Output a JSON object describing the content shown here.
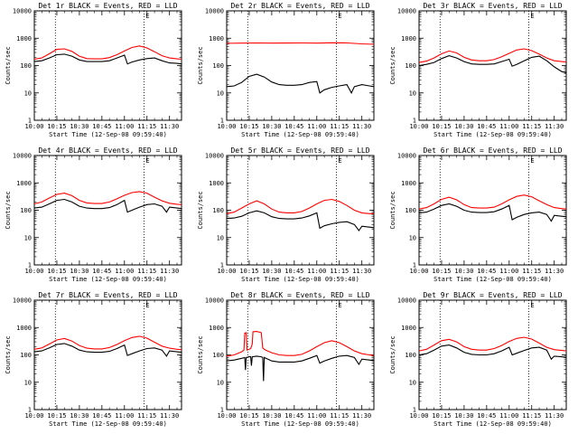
{
  "figure": {
    "xlabel": "Start Time (12-Sep-08 09:59:40)",
    "ylabel": "Counts/sec",
    "x_tick_labels": [
      "10:00",
      "10:15",
      "10:30",
      "10:45",
      "11:00",
      "11:15",
      "11:30"
    ],
    "y_tick_labels": [
      "1",
      "10",
      "100",
      "1000",
      "10000"
    ],
    "marker_label": "E",
    "series_colors": {
      "events": "#000000",
      "lld": "#ff0000"
    }
  },
  "chart_data": [
    {
      "type": "line",
      "title": "Det 1r BLACK = Events, RED = LLD",
      "xlabel": "Start Time (12-Sep-08 09:59:40)",
      "ylabel": "Counts/sec",
      "x_unit": "minutes after 10:00",
      "xlim": [
        0,
        98
      ],
      "ylim": [
        1,
        10000
      ],
      "log_y": true,
      "vlines": [
        14,
        73
      ],
      "series": [
        {
          "name": "Events",
          "color": "#000000",
          "x": [
            0,
            5,
            10,
            15,
            20,
            25,
            30,
            35,
            40,
            45,
            50,
            55,
            60,
            62,
            65,
            70,
            75,
            80,
            85,
            90,
            95,
            98
          ],
          "y": [
            140,
            150,
            190,
            250,
            260,
            220,
            160,
            140,
            140,
            140,
            150,
            190,
            240,
            115,
            135,
            160,
            180,
            190,
            150,
            125,
            120,
            115
          ]
        },
        {
          "name": "LLD",
          "color": "#ff0000",
          "x": [
            0,
            5,
            10,
            15,
            20,
            25,
            30,
            35,
            40,
            45,
            50,
            55,
            60,
            65,
            70,
            75,
            80,
            85,
            90,
            95,
            98
          ],
          "y": [
            170,
            190,
            270,
            390,
            410,
            330,
            220,
            180,
            175,
            175,
            195,
            250,
            340,
            460,
            520,
            440,
            320,
            230,
            190,
            175,
            170
          ]
        }
      ]
    },
    {
      "type": "line",
      "title": "Det 2r BLACK = Events, RED = LLD",
      "xlabel": "Start Time (12-Sep-08 09:59:40)",
      "ylabel": "Counts/sec",
      "x_unit": "minutes after 10:00",
      "xlim": [
        0,
        98
      ],
      "ylim": [
        1,
        10000
      ],
      "log_y": true,
      "vlines": [
        14,
        73
      ],
      "series": [
        {
          "name": "Events",
          "color": "#000000",
          "x": [
            0,
            5,
            10,
            15,
            20,
            25,
            30,
            35,
            40,
            45,
            50,
            55,
            60,
            62,
            65,
            70,
            75,
            80,
            83,
            85,
            90,
            95,
            98
          ],
          "y": [
            17,
            18,
            24,
            40,
            48,
            38,
            25,
            20,
            19,
            19,
            20,
            24,
            26,
            10,
            13,
            16,
            18,
            20,
            10,
            17,
            20,
            18,
            17
          ]
        },
        {
          "name": "LLD",
          "color": "#ff0000",
          "x": [
            0,
            10,
            20,
            30,
            40,
            50,
            60,
            70,
            80,
            90,
            98
          ],
          "y": [
            650,
            660,
            670,
            660,
            665,
            670,
            660,
            680,
            670,
            620,
            600
          ]
        }
      ]
    },
    {
      "type": "line",
      "title": "Det 3r BLACK = Events, RED = LLD",
      "xlabel": "Start Time (12-Sep-08 09:59:40)",
      "ylabel": "Counts/sec",
      "x_unit": "minutes after 10:00",
      "xlim": [
        0,
        98
      ],
      "ylim": [
        1,
        10000
      ],
      "log_y": true,
      "vlines": [
        14,
        73
      ],
      "series": [
        {
          "name": "Events",
          "color": "#000000",
          "x": [
            0,
            5,
            10,
            15,
            20,
            25,
            30,
            35,
            40,
            45,
            50,
            55,
            60,
            62,
            65,
            70,
            75,
            80,
            85,
            90,
            95,
            98
          ],
          "y": [
            100,
            110,
            130,
            180,
            230,
            190,
            140,
            115,
            110,
            110,
            115,
            140,
            170,
            95,
            110,
            150,
            200,
            220,
            150,
            90,
            60,
            55
          ]
        },
        {
          "name": "LLD",
          "color": "#ff0000",
          "x": [
            0,
            5,
            10,
            15,
            20,
            25,
            30,
            35,
            40,
            45,
            50,
            55,
            60,
            65,
            70,
            75,
            80,
            85,
            90,
            95,
            98
          ],
          "y": [
            130,
            145,
            190,
            270,
            340,
            290,
            200,
            160,
            150,
            150,
            165,
            210,
            280,
            370,
            410,
            350,
            260,
            190,
            150,
            140,
            135
          ]
        }
      ]
    },
    {
      "type": "line",
      "title": "Det 4r BLACK = Events, RED = LLD",
      "xlabel": "Start Time (12-Sep-08 09:59:40)",
      "ylabel": "Counts/sec",
      "x_unit": "minutes after 10:00",
      "xlim": [
        0,
        98
      ],
      "ylim": [
        1,
        10000
      ],
      "log_y": true,
      "vlines": [
        14,
        73
      ],
      "series": [
        {
          "name": "Events",
          "color": "#000000",
          "x": [
            0,
            5,
            10,
            15,
            20,
            25,
            30,
            35,
            40,
            45,
            50,
            55,
            60,
            62,
            65,
            70,
            75,
            80,
            85,
            88,
            90,
            95,
            98
          ],
          "y": [
            120,
            130,
            170,
            230,
            250,
            200,
            140,
            120,
            115,
            115,
            125,
            160,
            230,
            85,
            100,
            130,
            160,
            170,
            140,
            85,
            130,
            120,
            115
          ]
        },
        {
          "name": "LLD",
          "color": "#ff0000",
          "x": [
            0,
            5,
            10,
            15,
            20,
            25,
            30,
            35,
            40,
            45,
            50,
            55,
            60,
            65,
            70,
            75,
            80,
            85,
            90,
            95,
            98
          ],
          "y": [
            170,
            200,
            280,
            380,
            420,
            340,
            230,
            185,
            175,
            175,
            200,
            260,
            350,
            440,
            480,
            420,
            300,
            220,
            180,
            165,
            160
          ]
        }
      ]
    },
    {
      "type": "line",
      "title": "Det 5r BLACK = Events, RED = LLD",
      "xlabel": "Start Time (12-Sep-08 09:59:40)",
      "ylabel": "Counts/sec",
      "x_unit": "minutes after 10:00",
      "xlim": [
        0,
        98
      ],
      "ylim": [
        1,
        10000
      ],
      "log_y": true,
      "vlines": [
        14,
        73
      ],
      "series": [
        {
          "name": "Events",
          "color": "#000000",
          "x": [
            0,
            5,
            10,
            15,
            20,
            25,
            30,
            35,
            40,
            45,
            50,
            55,
            60,
            62,
            65,
            70,
            75,
            80,
            85,
            88,
            90,
            95,
            98
          ],
          "y": [
            50,
            52,
            60,
            80,
            95,
            80,
            58,
            50,
            48,
            48,
            52,
            62,
            80,
            22,
            27,
            32,
            36,
            38,
            30,
            18,
            26,
            24,
            23
          ]
        },
        {
          "name": "LLD",
          "color": "#ff0000",
          "x": [
            0,
            5,
            10,
            15,
            20,
            25,
            30,
            35,
            40,
            45,
            50,
            55,
            60,
            65,
            70,
            75,
            80,
            85,
            90,
            95,
            98
          ],
          "y": [
            75,
            85,
            120,
            170,
            220,
            170,
            110,
            85,
            80,
            80,
            90,
            120,
            170,
            230,
            250,
            210,
            150,
            100,
            80,
            75,
            75
          ]
        }
      ]
    },
    {
      "type": "line",
      "title": "Det 6r BLACK = Events, RED = LLD",
      "xlabel": "Start Time (12-Sep-08 09:59:40)",
      "ylabel": "Counts/sec",
      "x_unit": "minutes after 10:00",
      "xlim": [
        0,
        98
      ],
      "ylim": [
        1,
        10000
      ],
      "log_y": true,
      "vlines": [
        14,
        73
      ],
      "series": [
        {
          "name": "Events",
          "color": "#000000",
          "x": [
            0,
            5,
            10,
            15,
            20,
            25,
            30,
            35,
            40,
            45,
            50,
            55,
            60,
            62,
            65,
            70,
            75,
            80,
            85,
            88,
            90,
            95,
            98
          ],
          "y": [
            80,
            85,
            110,
            150,
            170,
            140,
            100,
            85,
            82,
            82,
            88,
            110,
            150,
            45,
            55,
            70,
            80,
            85,
            70,
            40,
            65,
            60,
            58
          ]
        },
        {
          "name": "LLD",
          "color": "#ff0000",
          "x": [
            0,
            5,
            10,
            15,
            20,
            25,
            30,
            35,
            40,
            45,
            50,
            55,
            60,
            65,
            70,
            75,
            80,
            85,
            90,
            95,
            98
          ],
          "y": [
            110,
            125,
            170,
            250,
            300,
            240,
            160,
            125,
            120,
            120,
            130,
            170,
            240,
            320,
            360,
            310,
            220,
            160,
            125,
            115,
            110
          ]
        }
      ]
    },
    {
      "type": "line",
      "title": "Det 7r BLACK = Events, RED = LLD",
      "xlabel": "Start Time (12-Sep-08 09:59:40)",
      "ylabel": "Counts/sec",
      "x_unit": "minutes after 10:00",
      "xlim": [
        0,
        98
      ],
      "ylim": [
        1,
        10000
      ],
      "log_y": true,
      "vlines": [
        14,
        73
      ],
      "series": [
        {
          "name": "Events",
          "color": "#000000",
          "x": [
            0,
            5,
            10,
            15,
            20,
            25,
            30,
            35,
            40,
            45,
            50,
            55,
            60,
            62,
            65,
            70,
            75,
            80,
            85,
            88,
            90,
            95,
            98
          ],
          "y": [
            130,
            140,
            180,
            240,
            260,
            210,
            150,
            130,
            125,
            125,
            135,
            170,
            230,
            95,
            110,
            140,
            170,
            180,
            150,
            90,
            140,
            130,
            125
          ]
        },
        {
          "name": "LLD",
          "color": "#ff0000",
          "x": [
            0,
            5,
            10,
            15,
            20,
            25,
            30,
            35,
            40,
            45,
            50,
            55,
            60,
            65,
            70,
            75,
            80,
            85,
            90,
            95,
            98
          ],
          "y": [
            160,
            180,
            250,
            350,
            400,
            320,
            220,
            175,
            165,
            165,
            185,
            240,
            330,
            430,
            480,
            410,
            290,
            210,
            175,
            160,
            155
          ]
        }
      ]
    },
    {
      "type": "line",
      "title": "Det 8r BLACK = Events, RED = LLD",
      "xlabel": "Start Time (12-Sep-08 09:59:40)",
      "ylabel": "Counts/sec",
      "x_unit": "minutes after 10:00",
      "xlim": [
        0,
        98
      ],
      "ylim": [
        1,
        10000
      ],
      "log_y": true,
      "vlines": [
        14,
        73
      ],
      "series": [
        {
          "name": "Events",
          "color": "#000000",
          "x": [
            0,
            5,
            10,
            12,
            12.5,
            13,
            15,
            16,
            16.5,
            17,
            20,
            23,
            24,
            24.5,
            25,
            30,
            35,
            40,
            45,
            50,
            55,
            60,
            62,
            65,
            70,
            75,
            80,
            85,
            88,
            90,
            95,
            98
          ],
          "y": [
            60,
            65,
            75,
            80,
            28,
            80,
            85,
            85,
            40,
            85,
            90,
            85,
            80,
            11,
            80,
            60,
            55,
            55,
            55,
            60,
            75,
            95,
            50,
            60,
            75,
            90,
            95,
            80,
            45,
            70,
            65,
            62
          ]
        },
        {
          "name": "LLD",
          "color": "#ff0000",
          "x": [
            0,
            5,
            10,
            11.5,
            12,
            13,
            13.5,
            15,
            16,
            17,
            17.5,
            20,
            23,
            24,
            25,
            26,
            30,
            35,
            40,
            45,
            50,
            55,
            60,
            65,
            70,
            75,
            80,
            85,
            90,
            95,
            98
          ],
          "y": [
            90,
            100,
            130,
            150,
            620,
            650,
            150,
            160,
            170,
            250,
            700,
            720,
            650,
            180,
            160,
            150,
            120,
            100,
            95,
            95,
            105,
            140,
            200,
            280,
            330,
            280,
            200,
            140,
            110,
            100,
            95
          ]
        }
      ]
    },
    {
      "type": "line",
      "title": "Det 9r BLACK = Events, RED = LLD",
      "xlabel": "Start Time (12-Sep-08 09:59:40)",
      "ylabel": "Counts/sec",
      "x_unit": "minutes after 10:00",
      "xlim": [
        0,
        98
      ],
      "ylim": [
        1,
        10000
      ],
      "log_y": true,
      "vlines": [
        14,
        73
      ],
      "series": [
        {
          "name": "Events",
          "color": "#000000",
          "x": [
            0,
            5,
            10,
            15,
            20,
            25,
            30,
            35,
            40,
            45,
            50,
            55,
            60,
            62,
            65,
            70,
            75,
            80,
            85,
            88,
            90,
            95,
            98
          ],
          "y": [
            100,
            110,
            150,
            210,
            230,
            180,
            125,
            105,
            100,
            100,
            110,
            140,
            190,
            100,
            115,
            145,
            180,
            190,
            150,
            70,
            90,
            85,
            80
          ]
        },
        {
          "name": "LLD",
          "color": "#ff0000",
          "x": [
            0,
            5,
            10,
            15,
            20,
            25,
            30,
            35,
            40,
            45,
            50,
            55,
            60,
            65,
            70,
            75,
            80,
            85,
            90,
            95,
            98
          ],
          "y": [
            140,
            160,
            230,
            330,
            370,
            300,
            200,
            160,
            150,
            150,
            170,
            220,
            310,
            400,
            440,
            380,
            270,
            190,
            155,
            145,
            140
          ]
        }
      ]
    }
  ]
}
